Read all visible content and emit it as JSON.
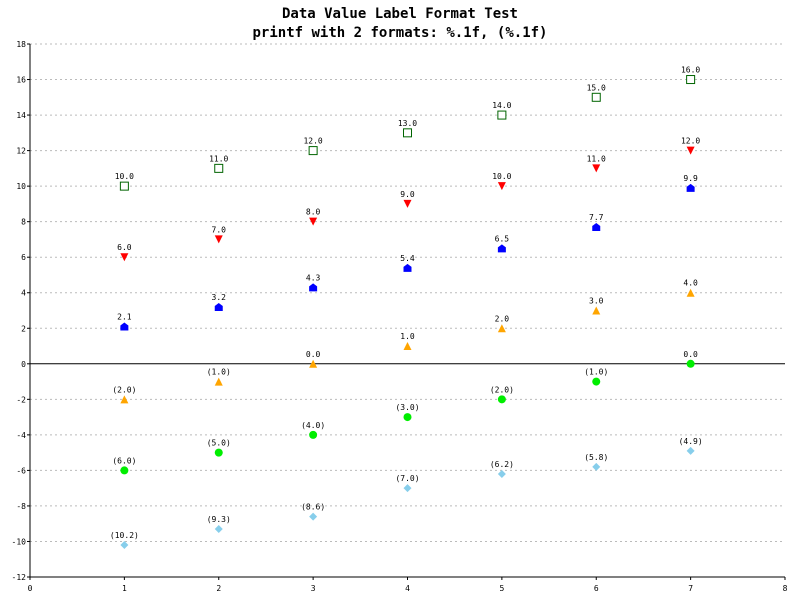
{
  "chart_data": {
    "type": "scatter",
    "title": "Data Value Label Format Test",
    "subtitle": "printf with 2 formats: %.1f, (%.1f)",
    "xlim": [
      0,
      8
    ],
    "ylim": [
      -12,
      18
    ],
    "x_ticks": [
      "0",
      "1",
      "2",
      "3",
      "4",
      "5",
      "6",
      "7",
      "8"
    ],
    "y_ticks": [
      "18",
      "16",
      "14",
      "12",
      "10",
      "8",
      "6",
      "4",
      "2",
      "0",
      "-2",
      "-4",
      "-6",
      "-8",
      "-10",
      "-12"
    ],
    "grid": "horizontal dashed",
    "x": [
      1,
      2,
      3,
      4,
      5,
      6,
      7
    ],
    "series": [
      {
        "marker": "open-square",
        "color": "#006400",
        "values": [
          10.0,
          11.0,
          12.0,
          13.0,
          14.0,
          15.0,
          16.0
        ],
        "labels": [
          "10.0",
          "11.0",
          "12.0",
          "13.0",
          "14.0",
          "15.0",
          "16.0"
        ]
      },
      {
        "marker": "down-triangle",
        "color": "#ff0000",
        "values": [
          6.0,
          7.0,
          8.0,
          9.0,
          10.0,
          11.0,
          12.0
        ],
        "labels": [
          "6.0",
          "7.0",
          "8.0",
          "9.0",
          "10.0",
          "11.0",
          "12.0"
        ]
      },
      {
        "marker": "house",
        "color": "#0000ff",
        "values": [
          2.1,
          3.2,
          4.3,
          5.4,
          6.5,
          7.7,
          9.9
        ],
        "labels": [
          "2.1",
          "3.2",
          "4.3",
          "5.4",
          "6.5",
          "7.7",
          "9.9"
        ]
      },
      {
        "marker": "up-triangle",
        "color": "#ffa500",
        "values": [
          -2.0,
          -1.0,
          0.0,
          1.0,
          2.0,
          3.0,
          4.0
        ],
        "labels": [
          "(2.0)",
          "(1.0)",
          "0.0",
          "1.0",
          "2.0",
          "3.0",
          "4.0"
        ]
      },
      {
        "marker": "circle",
        "color": "#00ee00",
        "values": [
          -6.0,
          -5.0,
          -4.0,
          -3.0,
          -2.0,
          -1.0,
          0.0
        ],
        "labels": [
          "(6.0)",
          "(5.0)",
          "(4.0)",
          "(3.0)",
          "(2.0)",
          "(1.0)",
          "0.0"
        ]
      },
      {
        "marker": "diamond",
        "color": "#87ceeb",
        "values": [
          -10.2,
          -9.3,
          -8.6,
          -7.0,
          -6.2,
          -5.8,
          -4.9
        ],
        "labels": [
          "(10.2)",
          "(9.3)",
          "(8.6)",
          "(7.0)",
          "(6.2)",
          "(5.8)",
          "(4.9)"
        ]
      }
    ]
  }
}
